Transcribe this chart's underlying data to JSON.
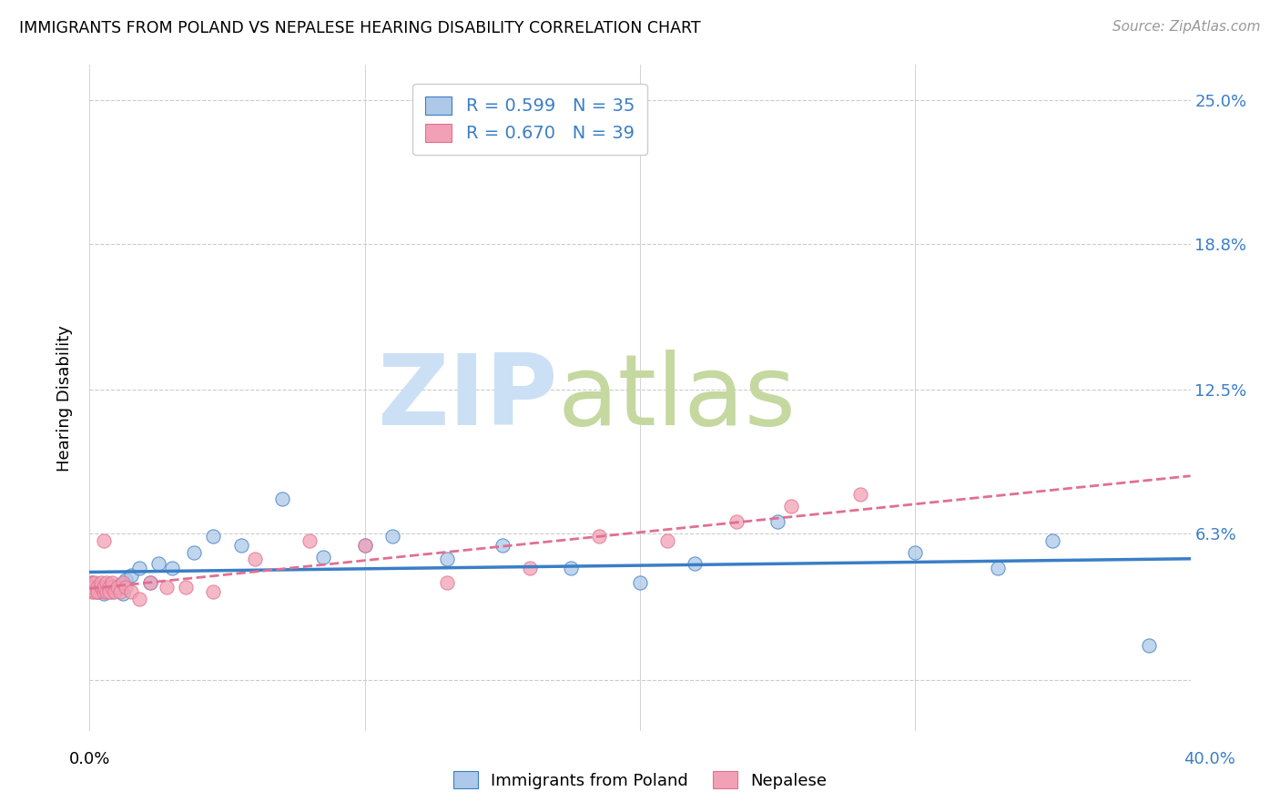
{
  "title": "IMMIGRANTS FROM POLAND VS NEPALESE HEARING DISABILITY CORRELATION CHART",
  "source": "Source: ZipAtlas.com",
  "ylabel": "Hearing Disability",
  "ytick_vals": [
    0.0,
    0.063,
    0.125,
    0.188,
    0.25
  ],
  "ytick_labels": [
    "",
    "6.3%",
    "12.5%",
    "18.8%",
    "25.0%"
  ],
  "xmin": 0.0,
  "xmax": 0.4,
  "ymin": -0.022,
  "ymax": 0.265,
  "legend_label1": "Immigrants from Poland",
  "legend_label2": "Nepalese",
  "poland_color": "#adc8e8",
  "nepalese_color": "#f2a0b5",
  "poland_line_color": "#3a7ec6",
  "nepalese_line_color": "#e07090",
  "poland_x": [
    0.001,
    0.002,
    0.003,
    0.004,
    0.005,
    0.006,
    0.007,
    0.008,
    0.009,
    0.01,
    0.011,
    0.012,
    0.013,
    0.015,
    0.018,
    0.022,
    0.025,
    0.03,
    0.038,
    0.045,
    0.055,
    0.07,
    0.085,
    0.1,
    0.11,
    0.13,
    0.15,
    0.175,
    0.2,
    0.22,
    0.25,
    0.3,
    0.33,
    0.35,
    0.385
  ],
  "poland_y": [
    0.042,
    0.04,
    0.038,
    0.04,
    0.037,
    0.039,
    0.041,
    0.038,
    0.04,
    0.039,
    0.041,
    0.037,
    0.043,
    0.045,
    0.048,
    0.042,
    0.05,
    0.048,
    0.055,
    0.062,
    0.058,
    0.078,
    0.053,
    0.058,
    0.062,
    0.052,
    0.058,
    0.048,
    0.042,
    0.05,
    0.068,
    0.055,
    0.048,
    0.06,
    0.015
  ],
  "nepalese_x": [
    0.001,
    0.001,
    0.001,
    0.002,
    0.002,
    0.003,
    0.003,
    0.004,
    0.004,
    0.005,
    0.005,
    0.006,
    0.006,
    0.007,
    0.007,
    0.008,
    0.008,
    0.009,
    0.01,
    0.011,
    0.012,
    0.013,
    0.015,
    0.018,
    0.022,
    0.028,
    0.035,
    0.045,
    0.06,
    0.08,
    0.1,
    0.13,
    0.16,
    0.185,
    0.21,
    0.235,
    0.255,
    0.28,
    0.005
  ],
  "nepalese_y": [
    0.038,
    0.042,
    0.04,
    0.038,
    0.042,
    0.04,
    0.038,
    0.04,
    0.042,
    0.038,
    0.04,
    0.038,
    0.042,
    0.04,
    0.038,
    0.04,
    0.042,
    0.038,
    0.04,
    0.038,
    0.042,
    0.04,
    0.038,
    0.035,
    0.042,
    0.04,
    0.04,
    0.038,
    0.052,
    0.06,
    0.058,
    0.042,
    0.048,
    0.062,
    0.06,
    0.068,
    0.075,
    0.08,
    0.06
  ],
  "poland_trendline": [
    -0.015,
    0.165
  ],
  "nepalese_trendline": [
    0.02,
    0.19
  ]
}
